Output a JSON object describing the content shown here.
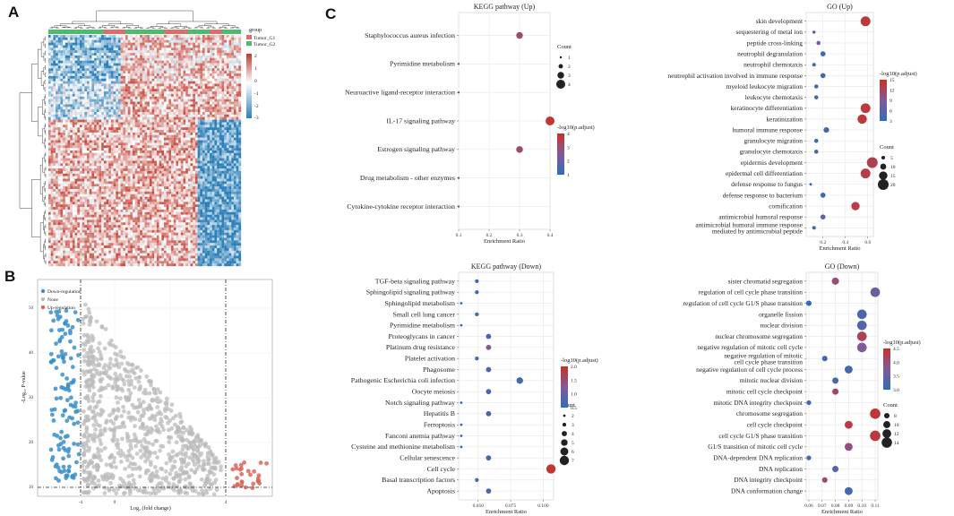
{
  "panels": {
    "a": "A",
    "b": "B",
    "c": "C"
  },
  "heatmap": {
    "legend_title": "group",
    "groups": [
      "Tumor_G1",
      "Tumor_G2"
    ],
    "group_colors": [
      "#e06b6b",
      "#4cbb6b"
    ],
    "scale_ticks": [
      "2",
      "1",
      "0",
      "-1",
      "-2",
      "-3"
    ],
    "high_color": "#c0392b",
    "low_color": "#2c7fb8"
  },
  "volcano": {
    "legend": [
      "Down-regulation",
      "None",
      "Up-regulation"
    ],
    "colors": [
      "#3a8fc9",
      "#bbbbbb",
      "#d9665b"
    ],
    "xlabel": "Log₂ (fold change)",
    "ylabel": "-Log₁₀ P-value",
    "yticks": [
      "50",
      "40",
      "30",
      "20",
      "10"
    ],
    "xticks": [
      "-4",
      "0",
      "4"
    ]
  },
  "chart_data": [
    {
      "id": "kegg-up",
      "type": "scatter",
      "title": "KEGG pathway (Up)",
      "xlabel": "Enrichment Ratio",
      "xlim": [
        0.1,
        0.4
      ],
      "xticks": [
        "0.1",
        "0.2",
        "0.3",
        "0.4"
      ],
      "terms": [
        "Staphylococcus aureus infection",
        "Pyrimidine metabolism",
        "Neuroactive ligand-receptor interaction",
        "IL-17 signaling pathway",
        "Estrogen signaling pathway",
        "Drug metabolism - other enzymes",
        "Cytokine-cytokine receptor interaction"
      ],
      "ratio": [
        0.3,
        0.1,
        0.1,
        0.4,
        0.3,
        0.1,
        0.1
      ],
      "count": [
        3,
        1,
        1,
        4,
        3,
        1,
        1
      ],
      "color_value": [
        3.3,
        1.1,
        1.1,
        4.4,
        3.3,
        1.1,
        1.1
      ],
      "count_legend_title": "Count",
      "count_legend": [
        1,
        2,
        3,
        4
      ],
      "count_range": [
        1,
        4
      ],
      "color_legend_title": "-log10(p.adjust)",
      "color_legend": [
        "4",
        "3",
        "2",
        "1"
      ],
      "color_range": [
        0.5,
        4.6
      ]
    },
    {
      "id": "go-up",
      "type": "scatter",
      "title": "GO (Up)",
      "xlabel": "Enrichment Ratio",
      "xlim": [
        0.05,
        0.65
      ],
      "xticks": [
        "0.2",
        "0.4",
        "0.6"
      ],
      "tick_values": [
        0.2,
        0.4,
        0.6
      ],
      "terms": [
        "skin development",
        "sequestering of metal ion",
        "peptide cross-linking",
        "neutrophil degranulation",
        "neutrophil chemotaxis",
        "neutrophil activation involved in immune response",
        "myeloid leukocyte migration",
        "leukocyte chemotaxis",
        "keratinocyte differentiation",
        "keratinization",
        "humoral immune response",
        "granulocyte migration",
        "granulocyte chemotaxis",
        "epidermis development",
        "epidermal cell differentiation",
        "defense response to fungus",
        "defense response to bacterium",
        "cornification",
        "antimicrobial humoral response",
        "antimicrobial humoral immune response mediated by antimicrobial peptide"
      ],
      "ratio": [
        0.58,
        0.12,
        0.16,
        0.2,
        0.12,
        0.2,
        0.14,
        0.14,
        0.58,
        0.55,
        0.23,
        0.14,
        0.14,
        0.64,
        0.58,
        0.09,
        0.2,
        0.49,
        0.2,
        0.12
      ],
      "count": [
        18,
        4,
        6,
        8,
        5,
        8,
        6,
        6,
        18,
        17,
        9,
        6,
        6,
        20,
        18,
        3,
        8,
        15,
        8,
        5
      ],
      "color_value": [
        14.8,
        5,
        8,
        3.2,
        3.2,
        3.3,
        3.3,
        3.3,
        14.5,
        14.6,
        3.6,
        3.2,
        3.2,
        13.5,
        14,
        3.5,
        3.6,
        14.3,
        6,
        3.8
      ],
      "count_legend_title": "Count",
      "count_legend": [
        5,
        10,
        15,
        20
      ],
      "count_range": [
        3,
        20
      ],
      "color_legend_title": "-log10(p.adjust)",
      "color_legend": [
        "15",
        "12",
        "9",
        "6",
        "3"
      ],
      "color_range": [
        2,
        16
      ]
    },
    {
      "id": "kegg-down",
      "type": "scatter",
      "title": "KEGG pathway (Down)",
      "xlabel": "Enrichment Ratio",
      "xlim": [
        0.035,
        0.108
      ],
      "xticks": [
        "0.050",
        "0.075",
        "0.100"
      ],
      "tick_values": [
        0.05,
        0.075,
        0.1
      ],
      "terms": [
        "TGF-beta signaling pathway",
        "Sphingolipid signaling pathway",
        "Sphingolipid metabolism",
        "Small cell lung cancer",
        "Pyrimidine metabolism",
        "Proteoglycans in cancer",
        "Platinum drug resistance",
        "Platelet activation",
        "Phagosome",
        "Pathogenic Escherichia coli infection",
        "Oocyte meiosis",
        "Notch signaling pathway",
        "Hepatitis B",
        "Ferroptosis",
        "Fanconi anemia pathway",
        "Cysteine and methionine metabolism",
        "Cellular senescence",
        "Cell cycle",
        "Basal transcription factors",
        "Apoptosis"
      ],
      "ratio": [
        0.049,
        0.049,
        0.037,
        0.049,
        0.037,
        0.058,
        0.058,
        0.049,
        0.058,
        0.082,
        0.058,
        0.037,
        0.058,
        0.037,
        0.037,
        0.037,
        0.058,
        0.106,
        0.049,
        0.058
      ],
      "count": [
        3,
        3,
        2,
        3,
        2,
        4,
        4,
        3,
        4,
        5,
        4,
        2,
        4,
        2,
        2,
        2,
        4,
        7,
        3,
        4
      ],
      "color_value": [
        0.45,
        0.45,
        0.4,
        0.45,
        0.4,
        0.6,
        1.25,
        0.45,
        0.6,
        0.55,
        0.6,
        0.4,
        0.6,
        0.4,
        0.4,
        0.4,
        0.6,
        2.05,
        0.6,
        0.6
      ],
      "count_legend_title": "Count",
      "count_legend": [
        2,
        3,
        4,
        5,
        6,
        7
      ],
      "count_range": [
        2,
        7
      ],
      "color_legend_title": "-log10(p.adjust)",
      "color_legend": [
        "2.0",
        "1.5",
        "1.0",
        "0.5"
      ],
      "color_range": [
        0.3,
        2.15
      ]
    },
    {
      "id": "go-down",
      "type": "scatter",
      "title": "GO (Down)",
      "xlabel": "Enrichment Ratio",
      "xlim": [
        0.058,
        0.112
      ],
      "xticks": [
        "0.06",
        "0.07",
        "0.08",
        "0.09",
        "0.10",
        "0.11"
      ],
      "tick_values": [
        0.06,
        0.07,
        0.08,
        0.09,
        0.1,
        0.11
      ],
      "terms": [
        "sister chromatid segregation",
        "regulation of cell cycle phase transition",
        "regulation of cell cycle G1/S phase transition",
        "organelle fission",
        "nuclear division",
        "nuclear chromosome segregation",
        "negative regulation of mitotic cell cycle",
        "negative regulation of mitotic cell cycle phase transition",
        "negative regulation of cell cycle process",
        "mitotic nuclear division",
        "mitotic cell cycle checkpoint",
        "mitotic DNA integrity checkpoint",
        "chromosome segregation",
        "cell cycle checkpoint",
        "cell cycle G1/S phase transition",
        "G1/S transition of mitotic cell cycle",
        "DNA-dependent DNA replication",
        "DNA replication",
        "DNA integrity checkpoint",
        "DNA conformation change"
      ],
      "ratio": [
        0.08,
        0.11,
        0.06,
        0.1,
        0.1,
        0.1,
        0.1,
        0.072,
        0.09,
        0.08,
        0.08,
        0.06,
        0.11,
        0.09,
        0.11,
        0.09,
        0.06,
        0.08,
        0.072,
        0.09
      ],
      "count": [
        10,
        13,
        8,
        13,
        13,
        13,
        13,
        8,
        11,
        9,
        9,
        7,
        14,
        11,
        14,
        11,
        7,
        9,
        8,
        11
      ],
      "color_value": [
        4.0,
        3.3,
        2.6,
        2.9,
        3.0,
        4.3,
        3.6,
        2.7,
        2.8,
        2.9,
        4.2,
        2.7,
        4.6,
        4.5,
        4.6,
        3.9,
        2.7,
        3.0,
        4.1,
        2.8
      ],
      "count_legend_title": "Count",
      "count_legend": [
        8,
        10,
        12,
        14
      ],
      "count_range": [
        7,
        14
      ],
      "color_legend_title": "-log10(p.adjust)",
      "color_legend": [
        "4.5",
        "4.0",
        "3.5",
        "3.0"
      ],
      "color_range": [
        2.5,
        4.8
      ]
    }
  ]
}
